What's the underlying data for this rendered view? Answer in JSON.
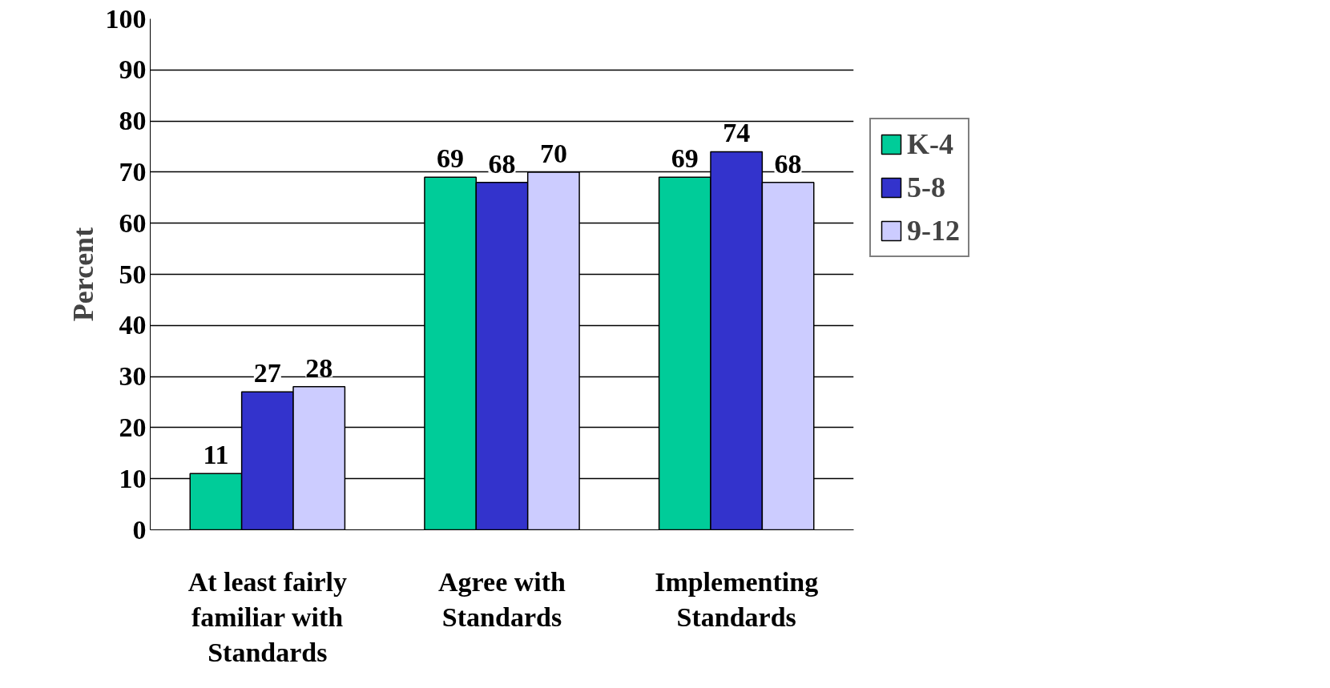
{
  "chart_data": {
    "type": "bar",
    "ylabel": "Percent",
    "categories": [
      "At least fairly familiar with Standards",
      "Agree with Standards",
      "Implementing Standards"
    ],
    "series": [
      {
        "name": "K-4",
        "color": "#00cc99",
        "values": [
          11,
          69,
          69
        ]
      },
      {
        "name": "5-8",
        "color": "#3333cc",
        "values": [
          27,
          68,
          74
        ]
      },
      {
        "name": "9-12",
        "color": "#ccccff",
        "values": [
          28,
          70,
          68
        ]
      }
    ],
    "ylim": [
      0,
      100
    ],
    "yticks": [
      0,
      10,
      20,
      30,
      40,
      50,
      60,
      70,
      80,
      90,
      100
    ],
    "grid": "y",
    "legend": "right",
    "data_labels": true
  }
}
